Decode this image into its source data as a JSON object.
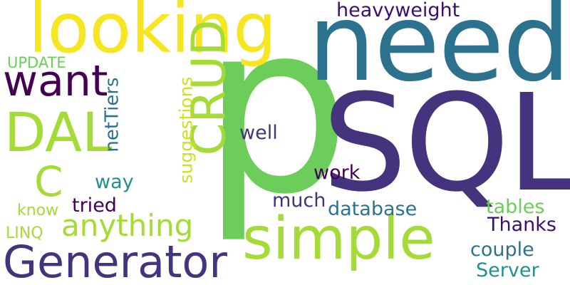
{
  "words": [
    {
      "id": "p",
      "text": "p",
      "color": "#6ccd5a",
      "orientation": "horizontal"
    },
    {
      "id": "need",
      "text": "need",
      "color": "#2c718e",
      "orientation": "horizontal"
    },
    {
      "id": "sql",
      "text": "SQL",
      "color": "#46337e",
      "orientation": "horizontal"
    },
    {
      "id": "looking",
      "text": "looking",
      "color": "#f6e620",
      "orientation": "horizontal"
    },
    {
      "id": "simple",
      "text": "simple",
      "color": "#a5db36",
      "orientation": "horizontal"
    },
    {
      "id": "generator",
      "text": "Generator",
      "color": "#46337e",
      "orientation": "horizontal"
    },
    {
      "id": "crud",
      "text": "CRUD",
      "color": "#a5db36",
      "orientation": "vertical"
    },
    {
      "id": "dal",
      "text": "DAL",
      "color": "#a5db36",
      "orientation": "horizontal"
    },
    {
      "id": "want",
      "text": "want",
      "color": "#440154",
      "orientation": "horizontal"
    },
    {
      "id": "c",
      "text": "C",
      "color": "#a5db36",
      "orientation": "horizontal"
    },
    {
      "id": "anything",
      "text": "anything",
      "color": "#a5db36",
      "orientation": "horizontal"
    },
    {
      "id": "heavyweight",
      "text": "heavyweight",
      "color": "#3b0f70",
      "orientation": "horizontal"
    },
    {
      "id": "update",
      "text": "UPDATE",
      "color": "#6ccd5a",
      "orientation": "horizontal"
    },
    {
      "id": "nettiers",
      "text": "netTiers",
      "color": "#2c718e",
      "orientation": "vertical"
    },
    {
      "id": "suggestions",
      "text": "suggestions",
      "color": "#cde11d",
      "orientation": "vertical"
    },
    {
      "id": "well",
      "text": "well",
      "color": "#46337e",
      "orientation": "horizontal"
    },
    {
      "id": "way",
      "text": "way",
      "color": "#21918c",
      "orientation": "horizontal"
    },
    {
      "id": "tried",
      "text": "tried",
      "color": "#440154",
      "orientation": "horizontal"
    },
    {
      "id": "know",
      "text": "know",
      "color": "#a5db36",
      "orientation": "horizontal"
    },
    {
      "id": "linq",
      "text": "LINQ",
      "color": "#a5db36",
      "orientation": "horizontal"
    },
    {
      "id": "work",
      "text": "work",
      "color": "#440154",
      "orientation": "horizontal"
    },
    {
      "id": "much",
      "text": "much",
      "color": "#46337e",
      "orientation": "horizontal"
    },
    {
      "id": "database",
      "text": "database",
      "color": "#2c718e",
      "orientation": "horizontal"
    },
    {
      "id": "tables",
      "text": "tables",
      "color": "#6ccd5a",
      "orientation": "horizontal"
    },
    {
      "id": "thanks",
      "text": "Thanks",
      "color": "#3b0f70",
      "orientation": "horizontal"
    },
    {
      "id": "couple",
      "text": "couple",
      "color": "#2c718e",
      "orientation": "horizontal"
    },
    {
      "id": "server",
      "text": "Server",
      "color": "#21918c",
      "orientation": "horizontal"
    }
  ]
}
